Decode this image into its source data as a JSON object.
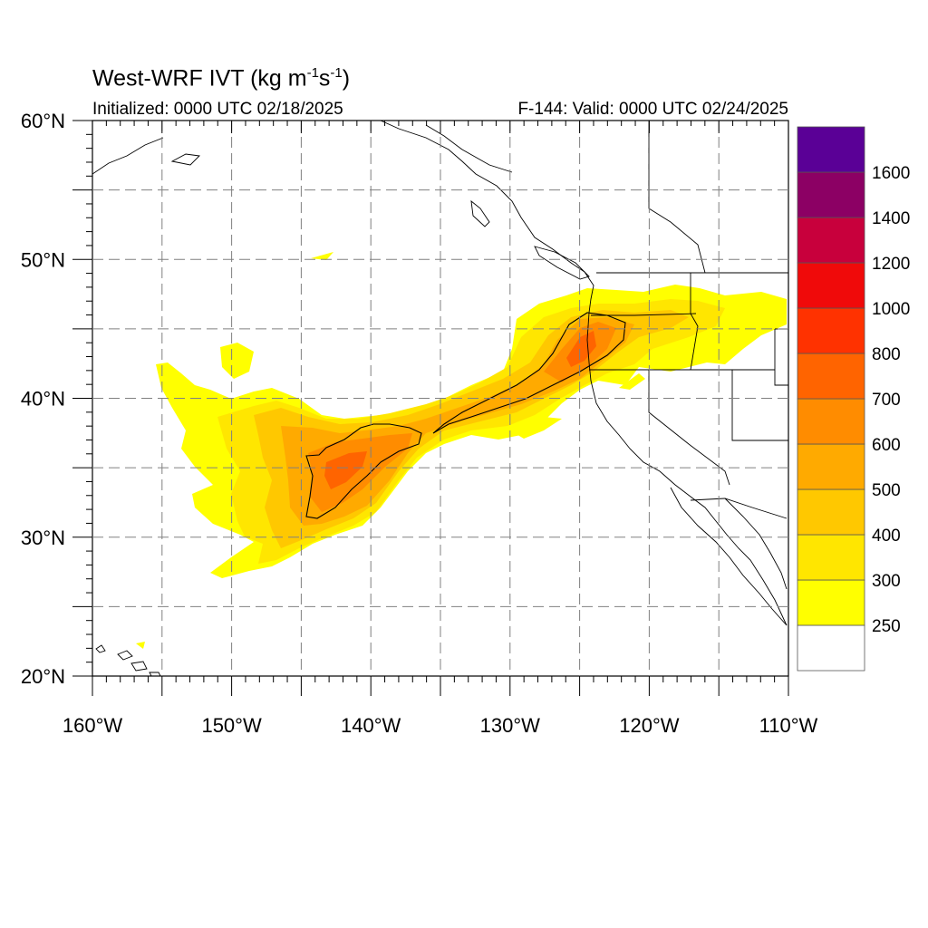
{
  "title": {
    "prefix": "West-WRF IVT (kg m",
    "exp1": "-1",
    "mid": "s",
    "exp2": "-1",
    "suffix": ")"
  },
  "init_text": "Initialized: 0000 UTC 02/18/2025",
  "valid_text": "F-144: Valid: 0000 UTC 02/24/2025",
  "axes": {
    "lon_range": [
      -160,
      -110
    ],
    "lat_range": [
      20,
      60
    ],
    "lon_major": [
      -160,
      -150,
      -140,
      -130,
      -120,
      -110
    ],
    "lat_major": [
      20,
      30,
      40,
      50,
      60
    ],
    "lon_labels": [
      "160°W",
      "150°W",
      "140°W",
      "130°W",
      "120°W",
      "110°W"
    ],
    "lat_labels": [
      "20°N",
      "30°N",
      "40°N",
      "50°N",
      "60°N"
    ],
    "gridlines": "dashed gray every 5°"
  },
  "colorbar": {
    "colors": [
      "#ffffff",
      "#ffff00",
      "#ffe600",
      "#ffc800",
      "#ffaa00",
      "#ff8c00",
      "#ff6400",
      "#ff3200",
      "#f00a0a",
      "#c8003c",
      "#8c0064",
      "#5a0096"
    ],
    "labels": [
      "250",
      "300",
      "400",
      "500",
      "600",
      "700",
      "800",
      "1000",
      "1200",
      "1400",
      "1600"
    ]
  },
  "ivt_field": {
    "description_levels": [
      250,
      300,
      400,
      500,
      600,
      700
    ],
    "core_lon_range": [
      -145,
      -120
    ],
    "core_lat_range": [
      32,
      46
    ]
  }
}
